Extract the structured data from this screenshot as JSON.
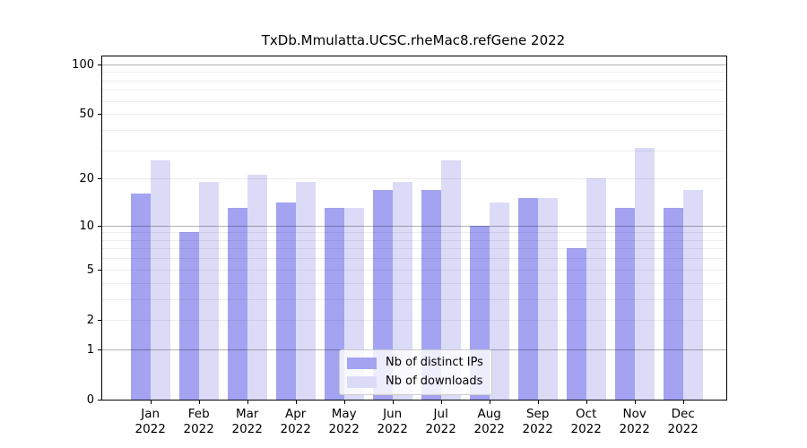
{
  "title": "TxDb.Mmulatta.UCSC.rheMac8.refGene 2022",
  "chart_data": {
    "type": "bar",
    "title": "TxDb.Mmulatta.UCSC.rheMac8.refGene 2022",
    "categories": [
      "Jan",
      "Feb",
      "Mar",
      "Apr",
      "May",
      "Jun",
      "Jul",
      "Aug",
      "Sep",
      "Oct",
      "Nov",
      "Dec"
    ],
    "category_year": "2022",
    "series": [
      {
        "name": "Nb of distinct IPs",
        "color": "#a3a3f2",
        "values": [
          16,
          9,
          13,
          14,
          13,
          17,
          17,
          10,
          15,
          7,
          13,
          13
        ]
      },
      {
        "name": "Nb of downloads",
        "color": "#dbdbf8",
        "values": [
          26,
          19,
          21,
          19,
          13,
          19,
          26,
          14,
          15,
          20,
          31,
          17
        ]
      }
    ],
    "y_axis": {
      "scale": "log1p",
      "ticks": [
        0,
        1,
        2,
        5,
        10,
        20,
        50,
        100
      ],
      "grid_major": [
        1,
        10,
        100
      ],
      "grid_minor": [
        2,
        3,
        4,
        5,
        6,
        7,
        8,
        9,
        20,
        30,
        40,
        50,
        60,
        70,
        80,
        90
      ],
      "range": [
        0,
        115
      ]
    },
    "legend": {
      "position": "bottom-center",
      "entries": [
        "Nb of distinct IPs",
        "Nb of downloads"
      ]
    },
    "grid": true
  }
}
